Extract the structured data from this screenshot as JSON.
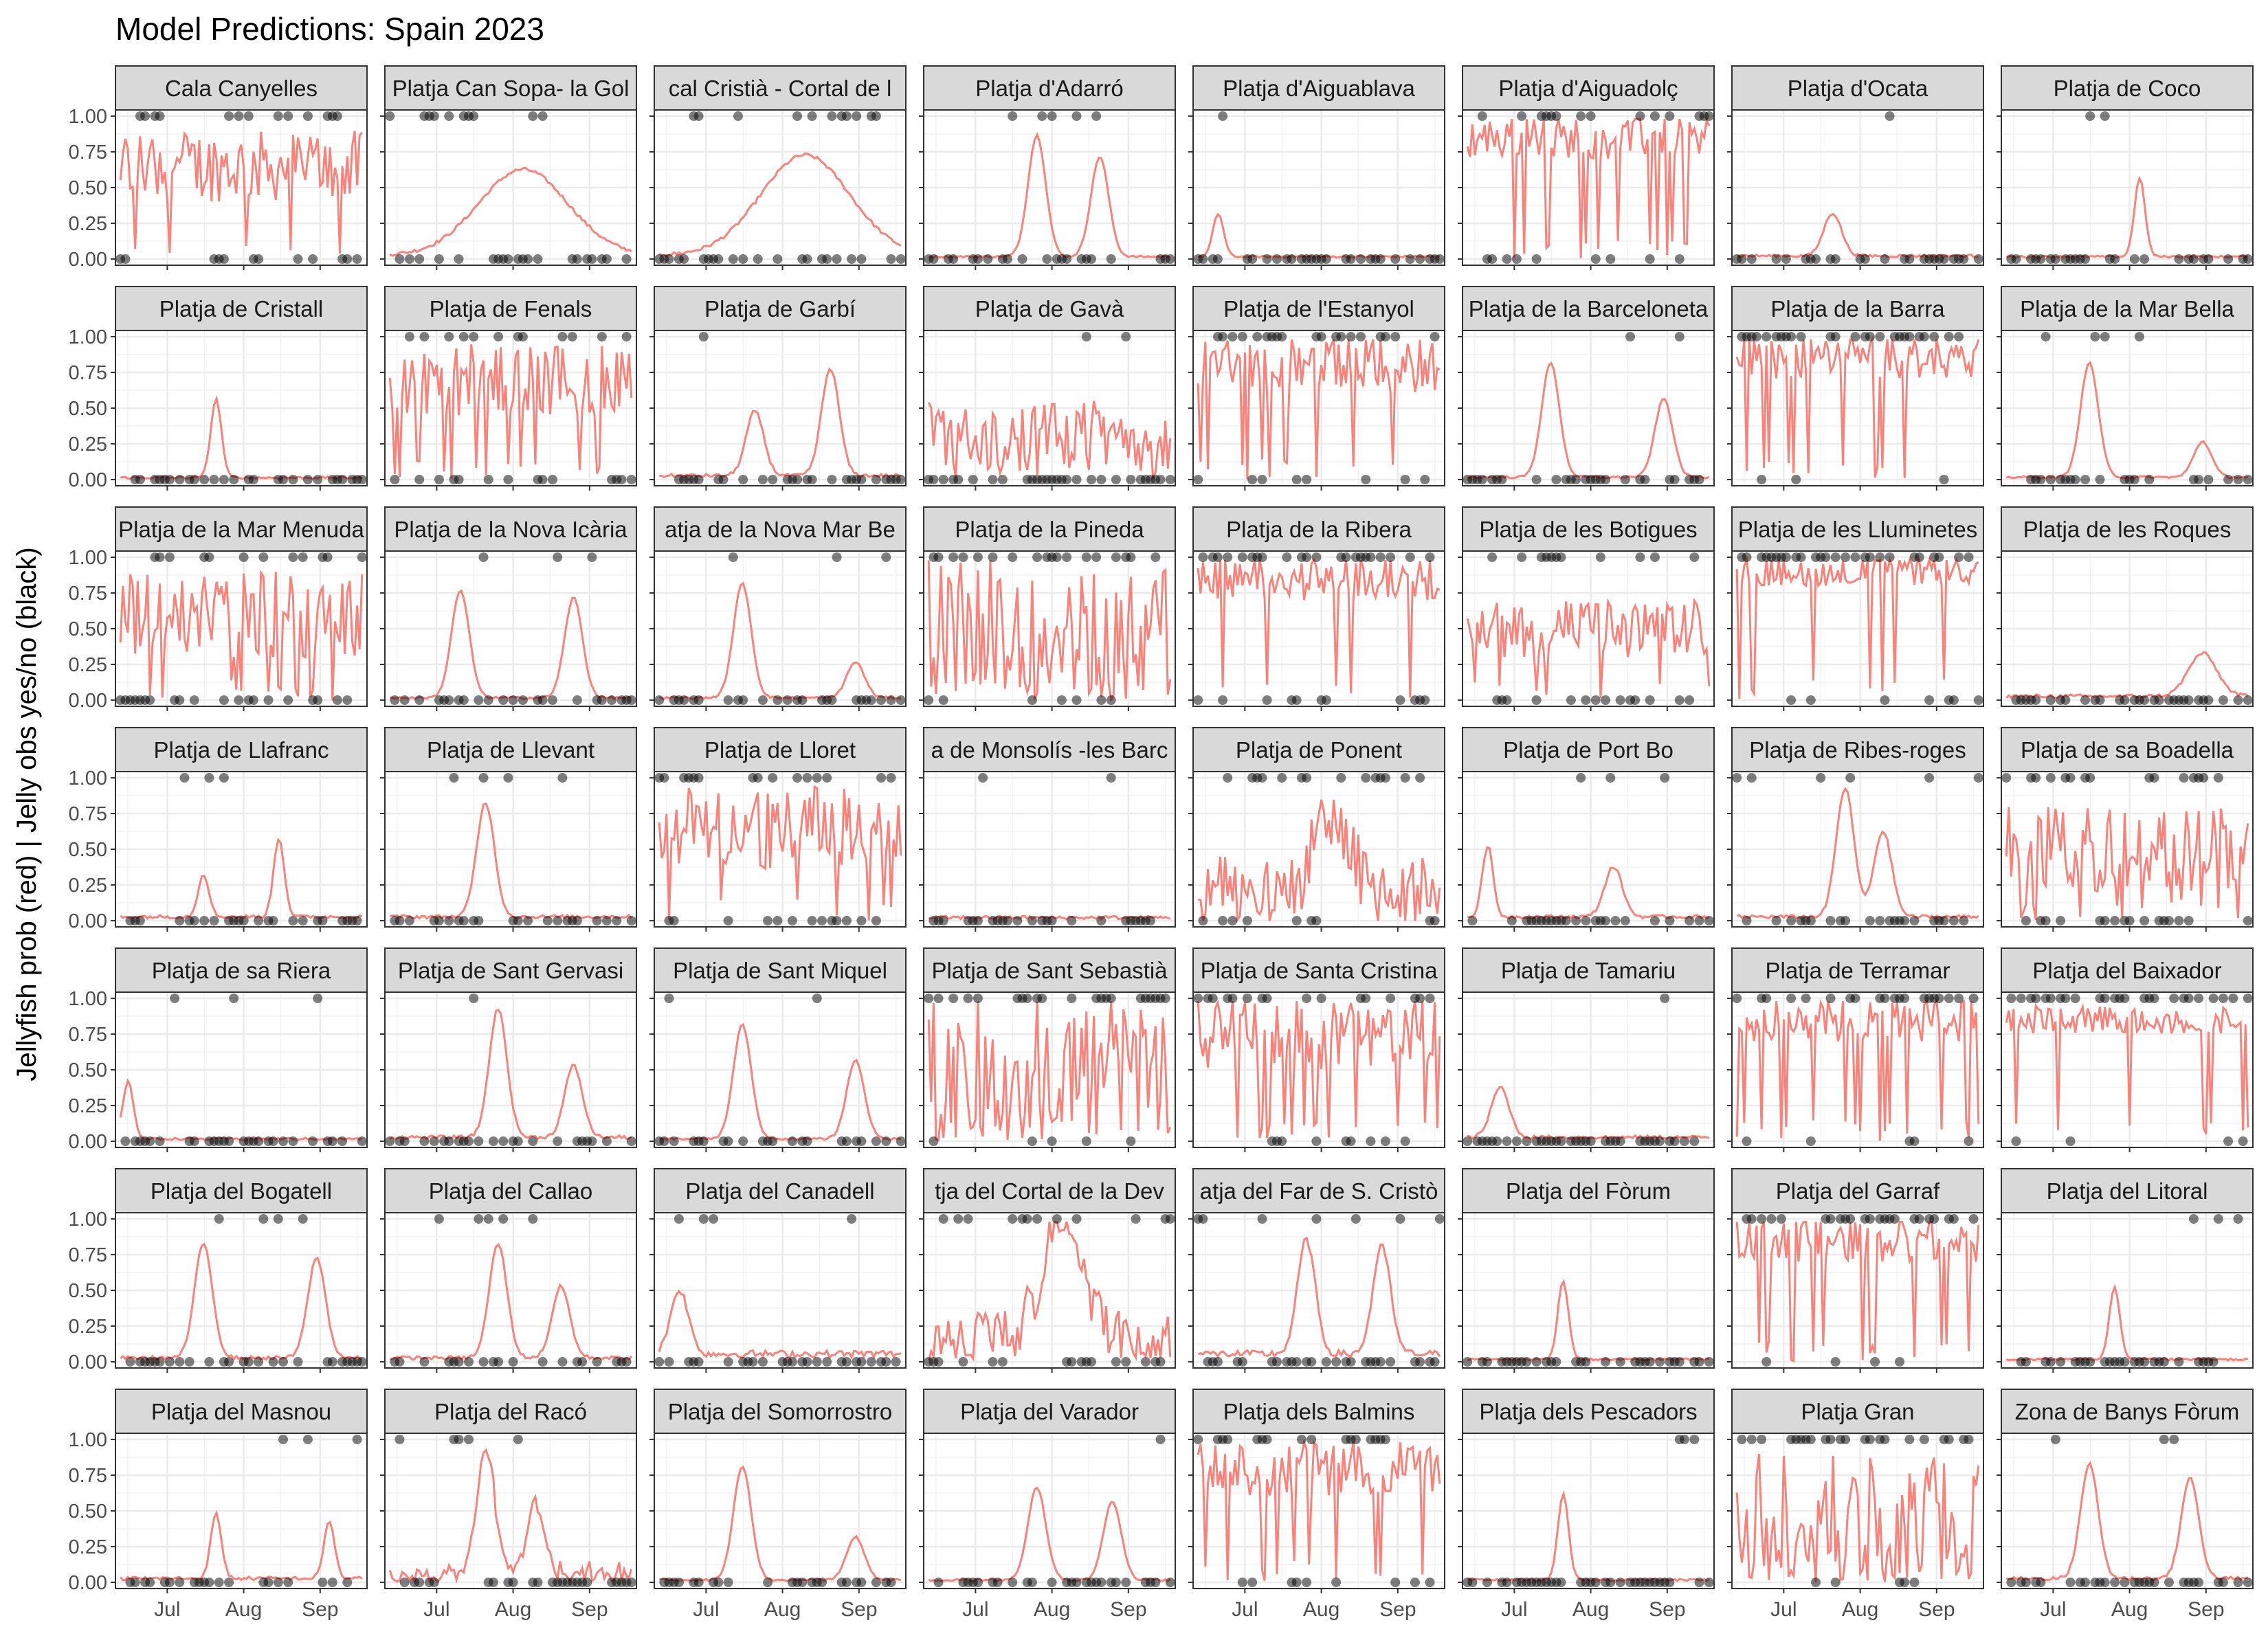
{
  "chart_data": {
    "type": "line",
    "title": "Model Predictions: Spain 2023",
    "ylabel": "Jellyfish prob (red) | Jelly obs yes/no (black)",
    "xlabel": "",
    "x_ticks": [
      "Jul",
      "Aug",
      "Sep"
    ],
    "y_ticks": [
      "0.00",
      "0.25",
      "0.50",
      "0.75",
      "1.00"
    ],
    "ylim": [
      0,
      1
    ],
    "xlim": [
      "2023-06-10",
      "2023-09-20"
    ],
    "grid": true,
    "line_color": "#F8766D",
    "point_color": "#000000",
    "series_types": [
      "predicted probability (line)",
      "observation yes/no (points)"
    ],
    "panels": [
      "Cala Canyelles",
      "Platja  Can Sopa- la Gol",
      "cal Cristià - Cortal de l",
      "Platja d'Adarró",
      "Platja d'Aiguablava",
      "Platja d'Aiguadolç",
      "Platja d'Ocata",
      "Platja de Coco",
      "Platja de Cristall",
      "Platja de Fenals",
      "Platja de Garbí",
      "Platja de Gavà",
      "Platja de l'Estanyol",
      "Platja de la Barceloneta",
      "Platja de la Barra",
      "Platja de la Mar Bella",
      "Platja de la Mar Menuda",
      "Platja de la Nova Icària",
      "atja de la Nova Mar Be",
      "Platja de la Pineda",
      "Platja de la Ribera",
      "Platja de les Botigues",
      "Platja de les Lluminetes",
      "Platja de les Roques",
      "Platja de Llafranc",
      "Platja de Llevant",
      "Platja de Lloret",
      "a de Monsolís -les Barc",
      "Platja de Ponent",
      "Platja de Port Bo",
      "Platja de Ribes-roges",
      "Platja de sa Boadella",
      "Platja de sa Riera",
      "Platja de Sant Gervasi",
      "Platja de Sant Miquel",
      "Platja de Sant Sebastià",
      "Platja de Santa Cristina",
      "Platja de Tamariu",
      "Platja de Terramar",
      "Platja del Baixador",
      "Platja del Bogatell",
      "Platja del Callao",
      "Platja del Canadell",
      "tja del Cortal de la Dev",
      "atja del Far de S. Cristò",
      "Platja del Fòrum",
      "Platja del Garraf",
      "Platja del Litoral",
      "Platja del Masnou",
      "Platja del Racó",
      "Platja del Somorrostro",
      "Platja del Varador",
      "Platja dels Balmins",
      "Platja dels Pescadors",
      "Platja Gran",
      "Zona de Banys Fòrum"
    ],
    "panel_profiles": [
      {
        "base": 0.65,
        "amp": 0.25,
        "peaks": [],
        "obs_rate": 0.45,
        "spiky": true
      },
      {
        "base": 0.05,
        "amp": 0.05,
        "peaks": [
          [
            0.55,
            0.6,
            0.25
          ]
        ],
        "obs_rate": 0.4,
        "spiky": false
      },
      {
        "base": 0.05,
        "amp": 0.05,
        "peaks": [
          [
            0.6,
            0.7,
            0.25
          ]
        ],
        "obs_rate": 0.35,
        "spiky": false
      },
      {
        "base": 0.03,
        "amp": 0.03,
        "peaks": [
          [
            0.45,
            0.85,
            0.05
          ],
          [
            0.7,
            0.7,
            0.05
          ]
        ],
        "obs_rate": 0.15,
        "spiky": false
      },
      {
        "base": 0.03,
        "amp": 0.03,
        "peaks": [
          [
            0.1,
            0.3,
            0.03
          ]
        ],
        "obs_rate": 0.05,
        "spiky": false
      },
      {
        "base": 0.85,
        "amp": 0.15,
        "peaks": [],
        "obs_rate": 0.6,
        "spiky": true
      },
      {
        "base": 0.04,
        "amp": 0.04,
        "peaks": [
          [
            0.4,
            0.3,
            0.05
          ]
        ],
        "obs_rate": 0.05,
        "spiky": false
      },
      {
        "base": 0.03,
        "amp": 0.03,
        "peaks": [
          [
            0.55,
            0.55,
            0.03
          ]
        ],
        "obs_rate": 0.05,
        "spiky": false
      },
      {
        "base": 0.02,
        "amp": 0.03,
        "peaks": [
          [
            0.4,
            0.55,
            0.03
          ]
        ],
        "obs_rate": 0.03,
        "spiky": false
      },
      {
        "base": 0.7,
        "amp": 0.25,
        "peaks": [],
        "obs_rate": 0.55,
        "spiky": true
      },
      {
        "base": 0.05,
        "amp": 0.05,
        "peaks": [
          [
            0.4,
            0.45,
            0.05
          ],
          [
            0.7,
            0.75,
            0.05
          ]
        ],
        "obs_rate": 0.1,
        "spiky": false
      },
      {
        "base": 0.3,
        "amp": 0.25,
        "peaks": [],
        "obs_rate": 0.1,
        "spiky": true
      },
      {
        "base": 0.8,
        "amp": 0.2,
        "peaks": [],
        "obs_rate": 0.7,
        "spiky": true
      },
      {
        "base": 0.03,
        "amp": 0.03,
        "peaks": [
          [
            0.35,
            0.8,
            0.05
          ],
          [
            0.8,
            0.55,
            0.05
          ]
        ],
        "obs_rate": 0.15,
        "spiky": false
      },
      {
        "base": 0.85,
        "amp": 0.15,
        "peaks": [],
        "obs_rate": 0.7,
        "spiky": true
      },
      {
        "base": 0.03,
        "amp": 0.03,
        "peaks": [
          [
            0.35,
            0.8,
            0.05
          ],
          [
            0.8,
            0.25,
            0.05
          ]
        ],
        "obs_rate": 0.08,
        "spiky": false
      },
      {
        "base": 0.6,
        "amp": 0.3,
        "peaks": [],
        "obs_rate": 0.45,
        "spiky": true
      },
      {
        "base": 0.03,
        "amp": 0.03,
        "peaks": [
          [
            0.3,
            0.75,
            0.05
          ],
          [
            0.75,
            0.7,
            0.05
          ]
        ],
        "obs_rate": 0.05,
        "spiky": false
      },
      {
        "base": 0.03,
        "amp": 0.03,
        "peaks": [
          [
            0.35,
            0.8,
            0.05
          ],
          [
            0.8,
            0.25,
            0.05
          ]
        ],
        "obs_rate": 0.05,
        "spiky": false
      },
      {
        "base": 0.5,
        "amp": 0.5,
        "peaks": [],
        "obs_rate": 0.75,
        "spiky": true
      },
      {
        "base": 0.85,
        "amp": 0.15,
        "peaks": [],
        "obs_rate": 0.65,
        "spiky": true
      },
      {
        "base": 0.5,
        "amp": 0.2,
        "peaks": [],
        "obs_rate": 0.3,
        "spiky": true
      },
      {
        "base": 0.9,
        "amp": 0.1,
        "peaks": [],
        "obs_rate": 0.85,
        "spiky": true
      },
      {
        "base": 0.05,
        "amp": 0.05,
        "peaks": [
          [
            0.8,
            0.3,
            0.08
          ]
        ],
        "obs_rate": 0.02,
        "spiky": false
      },
      {
        "base": 0.05,
        "amp": 0.05,
        "peaks": [
          [
            0.35,
            0.3,
            0.03
          ],
          [
            0.65,
            0.55,
            0.03
          ]
        ],
        "obs_rate": 0.08,
        "spiky": false
      },
      {
        "base": 0.05,
        "amp": 0.05,
        "peaks": [
          [
            0.4,
            0.8,
            0.05
          ]
        ],
        "obs_rate": 0.1,
        "spiky": false
      },
      {
        "base": 0.65,
        "amp": 0.3,
        "peaks": [],
        "obs_rate": 0.55,
        "spiky": true
      },
      {
        "base": 0.03,
        "amp": 0.05,
        "peaks": [],
        "obs_rate": 0.02,
        "spiky": false
      },
      {
        "base": 0.2,
        "amp": 0.25,
        "peaks": [
          [
            0.55,
            0.5,
            0.1
          ]
        ],
        "obs_rate": 0.4,
        "spiky": true
      },
      {
        "base": 0.05,
        "amp": 0.05,
        "peaks": [
          [
            0.1,
            0.5,
            0.03
          ],
          [
            0.6,
            0.35,
            0.05
          ]
        ],
        "obs_rate": 0.15,
        "spiky": false
      },
      {
        "base": 0.05,
        "amp": 0.05,
        "peaks": [
          [
            0.45,
            0.9,
            0.05
          ],
          [
            0.6,
            0.6,
            0.05
          ]
        ],
        "obs_rate": 0.15,
        "spiky": false
      },
      {
        "base": 0.5,
        "amp": 0.3,
        "peaks": [],
        "obs_rate": 0.5,
        "spiky": true
      },
      {
        "base": 0.03,
        "amp": 0.03,
        "peaks": [
          [
            0.05,
            0.4,
            0.03
          ]
        ],
        "obs_rate": 0.05,
        "spiky": false
      },
      {
        "base": 0.05,
        "amp": 0.05,
        "peaks": [
          [
            0.45,
            0.9,
            0.05
          ],
          [
            0.75,
            0.5,
            0.05
          ]
        ],
        "obs_rate": 0.1,
        "spiky": false
      },
      {
        "base": 0.03,
        "amp": 0.03,
        "peaks": [
          [
            0.35,
            0.8,
            0.05
          ],
          [
            0.8,
            0.55,
            0.05
          ]
        ],
        "obs_rate": 0.1,
        "spiky": false
      },
      {
        "base": 0.5,
        "amp": 0.5,
        "peaks": [],
        "obs_rate": 0.8,
        "spiky": true
      },
      {
        "base": 0.75,
        "amp": 0.25,
        "peaks": [],
        "obs_rate": 0.6,
        "spiky": true
      },
      {
        "base": 0.05,
        "amp": 0.05,
        "peaks": [
          [
            0.15,
            0.35,
            0.05
          ]
        ],
        "obs_rate": 0.02,
        "spiky": false
      },
      {
        "base": 0.85,
        "amp": 0.15,
        "peaks": [],
        "obs_rate": 0.75,
        "spiky": true
      },
      {
        "base": 0.85,
        "amp": 0.1,
        "peaks": [],
        "obs_rate": 0.95,
        "spiky": true
      },
      {
        "base": 0.05,
        "amp": 0.05,
        "peaks": [
          [
            0.35,
            0.8,
            0.05
          ],
          [
            0.8,
            0.7,
            0.05
          ]
        ],
        "obs_rate": 0.1,
        "spiky": false
      },
      {
        "base": 0.05,
        "amp": 0.05,
        "peaks": [
          [
            0.45,
            0.8,
            0.05
          ],
          [
            0.7,
            0.5,
            0.05
          ]
        ],
        "obs_rate": 0.15,
        "spiky": false
      },
      {
        "base": 0.1,
        "amp": 0.1,
        "peaks": [
          [
            0.1,
            0.45,
            0.05
          ]
        ],
        "obs_rate": 0.05,
        "spiky": false
      },
      {
        "base": 0.2,
        "amp": 0.2,
        "peaks": [
          [
            0.55,
            0.9,
            0.1
          ]
        ],
        "obs_rate": 0.4,
        "spiky": true
      },
      {
        "base": 0.1,
        "amp": 0.1,
        "peaks": [
          [
            0.45,
            0.8,
            0.05
          ],
          [
            0.75,
            0.75,
            0.05
          ]
        ],
        "obs_rate": 0.2,
        "spiky": false
      },
      {
        "base": 0.03,
        "amp": 0.03,
        "peaks": [
          [
            0.4,
            0.55,
            0.03
          ]
        ],
        "obs_rate": 0.02,
        "spiky": false
      },
      {
        "base": 0.85,
        "amp": 0.15,
        "peaks": [],
        "obs_rate": 0.7,
        "spiky": true
      },
      {
        "base": 0.03,
        "amp": 0.03,
        "peaks": [
          [
            0.45,
            0.5,
            0.03
          ]
        ],
        "obs_rate": 0.02,
        "spiky": false
      },
      {
        "base": 0.05,
        "amp": 0.05,
        "peaks": [
          [
            0.4,
            0.45,
            0.03
          ],
          [
            0.85,
            0.4,
            0.03
          ]
        ],
        "obs_rate": 0.1,
        "spiky": false
      },
      {
        "base": 0.05,
        "amp": 0.05,
        "peaks": [
          [
            0.4,
            0.9,
            0.05
          ],
          [
            0.6,
            0.5,
            0.05
          ]
        ],
        "obs_rate": 0.15,
        "spiky": true
      },
      {
        "base": 0.03,
        "amp": 0.03,
        "peaks": [
          [
            0.35,
            0.8,
            0.05
          ],
          [
            0.8,
            0.3,
            0.05
          ]
        ],
        "obs_rate": 0.05,
        "spiky": false
      },
      {
        "base": 0.03,
        "amp": 0.03,
        "peaks": [
          [
            0.45,
            0.65,
            0.05
          ],
          [
            0.75,
            0.55,
            0.05
          ]
        ],
        "obs_rate": 0.05,
        "spiky": false
      },
      {
        "base": 0.8,
        "amp": 0.2,
        "peaks": [],
        "obs_rate": 0.7,
        "spiky": true
      },
      {
        "base": 0.03,
        "amp": 0.03,
        "peaks": [
          [
            0.4,
            0.6,
            0.03
          ]
        ],
        "obs_rate": 0.05,
        "spiky": false
      },
      {
        "base": 0.45,
        "amp": 0.45,
        "peaks": [],
        "obs_rate": 0.8,
        "spiky": true
      },
      {
        "base": 0.05,
        "amp": 0.05,
        "peaks": [
          [
            0.35,
            0.8,
            0.05
          ],
          [
            0.75,
            0.7,
            0.05
          ]
        ],
        "obs_rate": 0.1,
        "spiky": false
      }
    ]
  }
}
